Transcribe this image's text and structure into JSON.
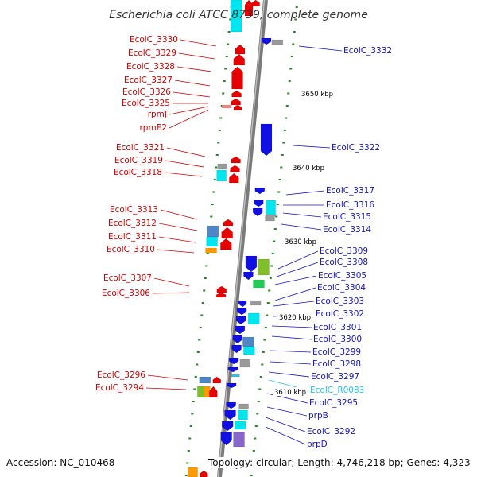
{
  "title": "Escherichia coli ATCC 8739, complete genome",
  "accession": "Accession: NC_010468",
  "topology": "Topology: circular; Length: 4,746,218 bp; Genes: 4,323",
  "colors": {
    "forward_label": "#d40000",
    "reverse_label": "#1414c8",
    "rna_label": "#2ec4e6",
    "backbone": "#888888",
    "tick": "#1e8c1e"
  },
  "scale_labels": [
    "3650 kbp",
    "3640 kbp",
    "3630 kbp",
    "3620 kbp",
    "3610 kbp"
  ],
  "left_labels": [
    "EcolC_3330",
    "EcolC_3329",
    "EcolC_3328",
    "EcolC_3327",
    "EcolC_3326",
    "EcolC_3325",
    "rpmJ",
    "rpmE2",
    "EcolC_3321",
    "EcolC_3319",
    "EcolC_3318",
    "EcolC_3313",
    "EcolC_3312",
    "EcolC_3311",
    "EcolC_3310",
    "EcolC_3307",
    "EcolC_3306",
    "EcolC_3296",
    "EcolC_3294"
  ],
  "right_labels": [
    "EcolC_3332",
    "EcolC_3322",
    "EcolC_3317",
    "EcolC_3316",
    "EcolC_3315",
    "EcolC_3314",
    "EcolC_3309",
    "EcolC_3308",
    "EcolC_3305",
    "EcolC_3304",
    "EcolC_3303",
    "EcolC_3302",
    "EcolC_3301",
    "EcolC_3300",
    "EcolC_3299",
    "EcolC_3298",
    "EcolC_3297",
    "EcolC_R0083",
    "EcolC_3295",
    "prpB",
    "EcolC_3292",
    "prpD"
  ]
}
